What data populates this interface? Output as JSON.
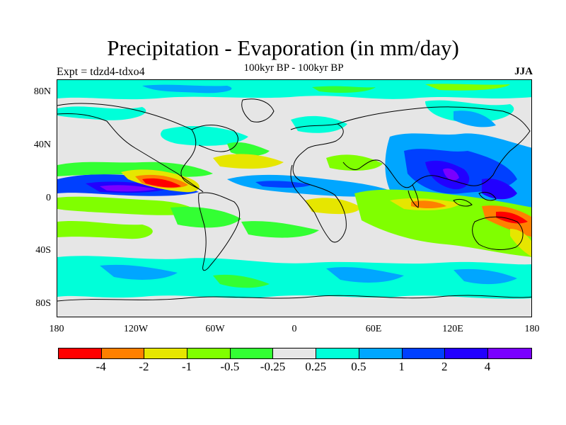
{
  "title": "Precipitation - Evaporation (in mm/day)",
  "subtitle": "100kyr BP - 100kyr BP",
  "experiment": "Expt = tdzd4-tdxo4",
  "season": "JJA",
  "lat_labels": [
    "80N",
    "40N",
    "0",
    "40S",
    "80S"
  ],
  "lon_labels": [
    "180",
    "120W",
    "60W",
    "0",
    "60E",
    "120E",
    "180"
  ],
  "colorbar": {
    "colors": [
      "#ff0000",
      "#ff8000",
      "#e6e600",
      "#80ff00",
      "#33ff33",
      "#e6e6e6",
      "#00ffd9",
      "#00a6ff",
      "#0040ff",
      "#2200ff",
      "#7a00ff"
    ],
    "labels": [
      "-4",
      "-2",
      "-1",
      "-0.5",
      "-0.25",
      "0.25",
      "0.5",
      "1",
      "2",
      "4"
    ]
  }
}
